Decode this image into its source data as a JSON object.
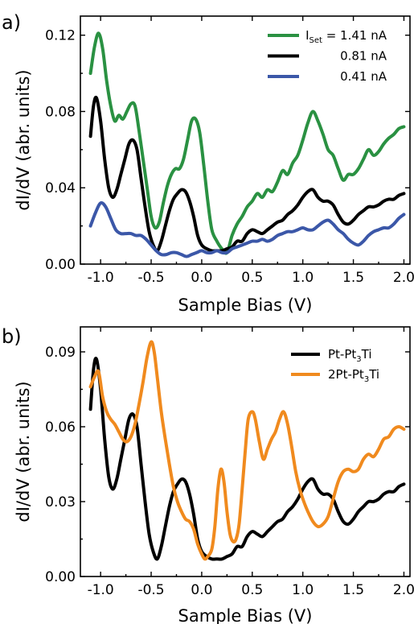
{
  "chart_data": [
    {
      "type": "line",
      "panel_label": "a)",
      "xlabel": "Sample Bias (V)",
      "ylabel": "dI/dV (abr. units)",
      "xlim": [
        -1.2,
        2.06
      ],
      "ylim": [
        0.0,
        0.13
      ],
      "xticks": [
        -1.0,
        -0.5,
        0.0,
        0.5,
        1.0,
        1.5,
        2.0
      ],
      "xtick_labels": [
        "-1.0",
        "-0.5",
        "0.0",
        "0.5",
        "1.0",
        "1.5",
        "2.0"
      ],
      "yticks": [
        0.0,
        0.04,
        0.08,
        0.12
      ],
      "ytick_labels": [
        "0.00",
        "0.04",
        "0.08",
        "0.12"
      ],
      "legend_position": "top-right",
      "series": [
        {
          "name": "I_Set = 1.41 nA",
          "legend_prefix": "I",
          "legend_sub": "Set",
          "legend_suffix": " = 1.41 nA",
          "color": "#2a9142",
          "x": [
            -1.1,
            -1.06,
            -1.02,
            -0.98,
            -0.94,
            -0.9,
            -0.86,
            -0.82,
            -0.78,
            -0.74,
            -0.7,
            -0.66,
            -0.62,
            -0.58,
            -0.54,
            -0.5,
            -0.46,
            -0.42,
            -0.38,
            -0.34,
            -0.3,
            -0.26,
            -0.22,
            -0.18,
            -0.14,
            -0.1,
            -0.06,
            -0.02,
            0.02,
            0.06,
            0.1,
            0.15,
            0.2,
            0.25,
            0.3,
            0.35,
            0.4,
            0.45,
            0.5,
            0.55,
            0.6,
            0.65,
            0.7,
            0.75,
            0.8,
            0.85,
            0.9,
            0.95,
            1.0,
            1.05,
            1.1,
            1.15,
            1.2,
            1.25,
            1.3,
            1.35,
            1.4,
            1.45,
            1.5,
            1.55,
            1.6,
            1.65,
            1.7,
            1.75,
            1.8,
            1.85,
            1.9,
            1.95,
            2.0
          ],
          "y": [
            0.1,
            0.114,
            0.121,
            0.113,
            0.096,
            0.083,
            0.075,
            0.078,
            0.076,
            0.08,
            0.084,
            0.083,
            0.07,
            0.055,
            0.04,
            0.025,
            0.019,
            0.022,
            0.032,
            0.041,
            0.047,
            0.05,
            0.05,
            0.055,
            0.065,
            0.075,
            0.076,
            0.069,
            0.052,
            0.033,
            0.018,
            0.012,
            0.008,
            0.006,
            0.015,
            0.021,
            0.025,
            0.03,
            0.033,
            0.037,
            0.035,
            0.039,
            0.038,
            0.043,
            0.049,
            0.047,
            0.053,
            0.057,
            0.065,
            0.074,
            0.08,
            0.075,
            0.068,
            0.06,
            0.057,
            0.05,
            0.044,
            0.047,
            0.047,
            0.05,
            0.055,
            0.06,
            0.057,
            0.059,
            0.063,
            0.066,
            0.068,
            0.071,
            0.072
          ]
        },
        {
          "name": "0.81 nA",
          "color": "#000000",
          "x": [
            -1.1,
            -1.07,
            -1.04,
            -1.0,
            -0.96,
            -0.92,
            -0.88,
            -0.84,
            -0.8,
            -0.76,
            -0.72,
            -0.68,
            -0.64,
            -0.6,
            -0.56,
            -0.52,
            -0.48,
            -0.44,
            -0.4,
            -0.36,
            -0.32,
            -0.28,
            -0.24,
            -0.2,
            -0.16,
            -0.12,
            -0.08,
            -0.04,
            0.0,
            0.05,
            0.1,
            0.15,
            0.2,
            0.25,
            0.3,
            0.35,
            0.4,
            0.45,
            0.5,
            0.55,
            0.6,
            0.65,
            0.7,
            0.75,
            0.8,
            0.85,
            0.9,
            0.95,
            1.0,
            1.05,
            1.1,
            1.15,
            1.2,
            1.25,
            1.3,
            1.35,
            1.4,
            1.45,
            1.5,
            1.55,
            1.6,
            1.65,
            1.7,
            1.75,
            1.8,
            1.85,
            1.9,
            1.95,
            2.0
          ],
          "y": [
            0.067,
            0.083,
            0.087,
            0.075,
            0.055,
            0.04,
            0.035,
            0.039,
            0.047,
            0.055,
            0.063,
            0.065,
            0.06,
            0.045,
            0.03,
            0.017,
            0.01,
            0.007,
            0.012,
            0.02,
            0.028,
            0.034,
            0.037,
            0.039,
            0.038,
            0.033,
            0.025,
            0.015,
            0.01,
            0.008,
            0.007,
            0.007,
            0.007,
            0.008,
            0.009,
            0.012,
            0.012,
            0.016,
            0.018,
            0.017,
            0.016,
            0.018,
            0.02,
            0.022,
            0.023,
            0.026,
            0.028,
            0.031,
            0.035,
            0.038,
            0.039,
            0.035,
            0.033,
            0.033,
            0.031,
            0.026,
            0.022,
            0.021,
            0.023,
            0.026,
            0.028,
            0.03,
            0.03,
            0.031,
            0.033,
            0.034,
            0.034,
            0.036,
            0.037
          ]
        },
        {
          "name": "0.41 nA",
          "color": "#3b57a8",
          "x": [
            -1.1,
            -1.05,
            -1.0,
            -0.95,
            -0.9,
            -0.85,
            -0.8,
            -0.75,
            -0.7,
            -0.65,
            -0.6,
            -0.55,
            -0.5,
            -0.45,
            -0.4,
            -0.35,
            -0.3,
            -0.25,
            -0.2,
            -0.15,
            -0.1,
            -0.05,
            0.0,
            0.05,
            0.1,
            0.15,
            0.2,
            0.25,
            0.3,
            0.35,
            0.4,
            0.45,
            0.5,
            0.55,
            0.6,
            0.65,
            0.7,
            0.75,
            0.8,
            0.85,
            0.9,
            0.95,
            1.0,
            1.05,
            1.1,
            1.15,
            1.2,
            1.25,
            1.3,
            1.35,
            1.4,
            1.45,
            1.5,
            1.55,
            1.6,
            1.65,
            1.7,
            1.75,
            1.8,
            1.85,
            1.9,
            1.95,
            2.0
          ],
          "y": [
            0.02,
            0.027,
            0.032,
            0.03,
            0.024,
            0.018,
            0.016,
            0.016,
            0.016,
            0.015,
            0.015,
            0.013,
            0.01,
            0.007,
            0.005,
            0.005,
            0.006,
            0.006,
            0.005,
            0.004,
            0.005,
            0.006,
            0.007,
            0.006,
            0.006,
            0.007,
            0.006,
            0.006,
            0.008,
            0.009,
            0.01,
            0.011,
            0.012,
            0.012,
            0.013,
            0.012,
            0.013,
            0.015,
            0.016,
            0.017,
            0.017,
            0.018,
            0.019,
            0.018,
            0.018,
            0.02,
            0.022,
            0.023,
            0.021,
            0.018,
            0.016,
            0.013,
            0.011,
            0.01,
            0.012,
            0.015,
            0.017,
            0.018,
            0.019,
            0.019,
            0.021,
            0.024,
            0.026
          ]
        }
      ]
    },
    {
      "type": "line",
      "panel_label": "b)",
      "xlabel": "Sample Bias (V)",
      "ylabel": "dI/dV (abr. units)",
      "xlim": [
        -1.2,
        2.06
      ],
      "ylim": [
        0.0,
        0.1
      ],
      "xticks": [
        -1.0,
        -0.5,
        0.0,
        0.5,
        1.0,
        1.5,
        2.0
      ],
      "xtick_labels": [
        "-1.0",
        "-0.5",
        "0.0",
        "0.5",
        "1.0",
        "1.5",
        "2.0"
      ],
      "yticks": [
        0.0,
        0.03,
        0.06,
        0.09
      ],
      "ytick_labels": [
        "0.00",
        "0.03",
        "0.06",
        "0.09"
      ],
      "legend_position": "top-right",
      "series": [
        {
          "name": "Pt-Pt3Ti",
          "legend_prefix": "Pt-Pt",
          "legend_sub": "3",
          "legend_suffix": "Ti",
          "color": "#000000",
          "x": [
            -1.1,
            -1.07,
            -1.04,
            -1.0,
            -0.96,
            -0.92,
            -0.88,
            -0.84,
            -0.8,
            -0.76,
            -0.72,
            -0.68,
            -0.64,
            -0.6,
            -0.56,
            -0.52,
            -0.48,
            -0.44,
            -0.4,
            -0.36,
            -0.32,
            -0.28,
            -0.24,
            -0.2,
            -0.16,
            -0.12,
            -0.08,
            -0.04,
            0.0,
            0.05,
            0.1,
            0.15,
            0.2,
            0.25,
            0.3,
            0.35,
            0.4,
            0.45,
            0.5,
            0.55,
            0.6,
            0.65,
            0.7,
            0.75,
            0.8,
            0.85,
            0.9,
            0.95,
            1.0,
            1.05,
            1.1,
            1.15,
            1.2,
            1.25,
            1.3,
            1.35,
            1.4,
            1.45,
            1.5,
            1.55,
            1.6,
            1.65,
            1.7,
            1.75,
            1.8,
            1.85,
            1.9,
            1.95,
            2.0
          ],
          "y": [
            0.067,
            0.083,
            0.087,
            0.075,
            0.055,
            0.04,
            0.035,
            0.039,
            0.047,
            0.055,
            0.063,
            0.065,
            0.06,
            0.045,
            0.03,
            0.017,
            0.01,
            0.007,
            0.012,
            0.02,
            0.028,
            0.034,
            0.037,
            0.039,
            0.038,
            0.033,
            0.025,
            0.015,
            0.01,
            0.008,
            0.007,
            0.007,
            0.007,
            0.008,
            0.009,
            0.012,
            0.012,
            0.016,
            0.018,
            0.017,
            0.016,
            0.018,
            0.02,
            0.022,
            0.023,
            0.026,
            0.028,
            0.031,
            0.035,
            0.038,
            0.039,
            0.035,
            0.033,
            0.033,
            0.031,
            0.026,
            0.022,
            0.021,
            0.023,
            0.026,
            0.028,
            0.03,
            0.03,
            0.031,
            0.033,
            0.034,
            0.034,
            0.036,
            0.037
          ]
        },
        {
          "name": "2Pt-Pt3Ti",
          "legend_prefix": "2Pt-Pt",
          "legend_sub": "3",
          "legend_suffix": "Ti",
          "color": "#f08a1e",
          "x": [
            -1.1,
            -1.06,
            -1.02,
            -0.98,
            -0.94,
            -0.9,
            -0.86,
            -0.82,
            -0.78,
            -0.74,
            -0.7,
            -0.66,
            -0.62,
            -0.58,
            -0.54,
            -0.5,
            -0.47,
            -0.44,
            -0.4,
            -0.36,
            -0.32,
            -0.28,
            -0.24,
            -0.2,
            -0.16,
            -0.12,
            -0.08,
            -0.04,
            0.0,
            0.03,
            0.06,
            0.1,
            0.13,
            0.16,
            0.19,
            0.22,
            0.25,
            0.28,
            0.31,
            0.34,
            0.37,
            0.4,
            0.43,
            0.46,
            0.5,
            0.53,
            0.57,
            0.61,
            0.65,
            0.69,
            0.73,
            0.77,
            0.81,
            0.85,
            0.89,
            0.93,
            0.97,
            1.01,
            1.05,
            1.1,
            1.15,
            1.2,
            1.25,
            1.3,
            1.35,
            1.4,
            1.45,
            1.5,
            1.55,
            1.6,
            1.65,
            1.7,
            1.75,
            1.8,
            1.85,
            1.9,
            1.95,
            2.0
          ],
          "y": [
            0.076,
            0.08,
            0.082,
            0.072,
            0.066,
            0.063,
            0.061,
            0.058,
            0.055,
            0.054,
            0.056,
            0.061,
            0.069,
            0.078,
            0.088,
            0.094,
            0.09,
            0.08,
            0.066,
            0.055,
            0.045,
            0.036,
            0.03,
            0.026,
            0.023,
            0.022,
            0.019,
            0.013,
            0.009,
            0.007,
            0.008,
            0.011,
            0.02,
            0.035,
            0.043,
            0.038,
            0.026,
            0.017,
            0.014,
            0.015,
            0.021,
            0.035,
            0.05,
            0.063,
            0.066,
            0.063,
            0.054,
            0.047,
            0.051,
            0.055,
            0.058,
            0.063,
            0.066,
            0.061,
            0.052,
            0.042,
            0.035,
            0.03,
            0.026,
            0.022,
            0.02,
            0.021,
            0.024,
            0.031,
            0.038,
            0.042,
            0.043,
            0.042,
            0.043,
            0.047,
            0.049,
            0.048,
            0.051,
            0.055,
            0.056,
            0.059,
            0.06,
            0.059
          ]
        }
      ]
    }
  ]
}
